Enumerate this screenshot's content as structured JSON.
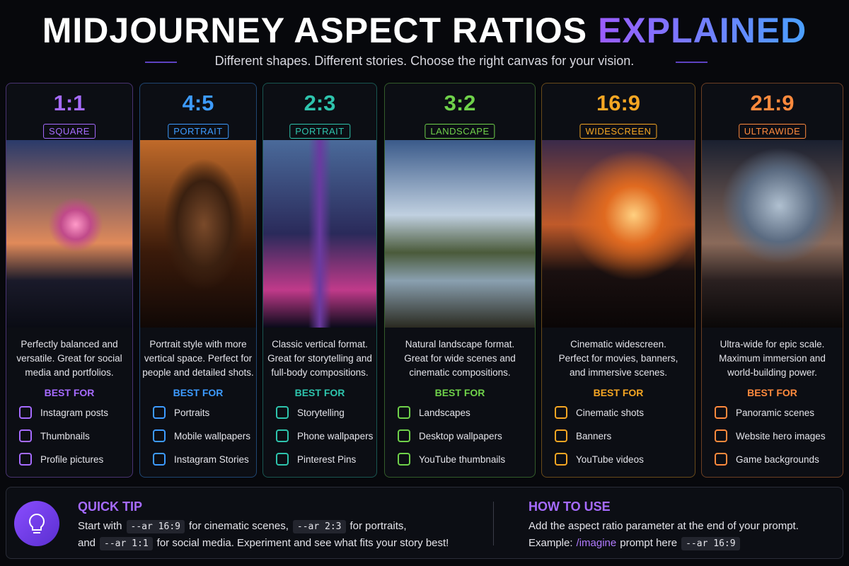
{
  "header": {
    "title_main": "MIDJOURNEY ASPECT RATIOS",
    "title_accent": "EXPLAINED",
    "subtitle": "Different shapes. Different stories. Choose the right canvas for your vision."
  },
  "cards": [
    {
      "ratio": "1:1",
      "label": "SQUARE",
      "color": "#a66bff",
      "description": [
        "Perfectly balanced and",
        "versatile. Great for social",
        "media and portfolios."
      ],
      "best_for": "BEST FOR",
      "items": [
        "Instagram posts",
        "Thumbnails",
        "Profile pictures"
      ]
    },
    {
      "ratio": "4:5",
      "label": "PORTRAIT",
      "color": "#3d9bff",
      "description": [
        "Portrait style with more",
        "vertical space. Perfect for",
        "people and detailed shots."
      ],
      "best_for": "BEST FOR",
      "items": [
        "Portraits",
        "Mobile wallpapers",
        "Instagram Stories"
      ]
    },
    {
      "ratio": "2:3",
      "label": "PORTRAIT",
      "color": "#2ec4ad",
      "description": [
        "Classic vertical format.",
        "Great for storytelling and",
        "full-body compositions."
      ],
      "best_for": "BEST FOR",
      "items": [
        "Storytelling",
        "Phone wallpapers",
        "Pinterest Pins"
      ]
    },
    {
      "ratio": "3:2",
      "label": "LANDSCAPE",
      "color": "#6fd14a",
      "description": [
        "Natural landscape format.",
        "Great for wide scenes and",
        "cinematic compositions."
      ],
      "best_for": "BEST FOR",
      "items": [
        "Landscapes",
        "Desktop wallpapers",
        "YouTube thumbnails"
      ]
    },
    {
      "ratio": "16:9",
      "label": "WIDESCREEN",
      "color": "#f5a623",
      "description": [
        "Cinematic widescreen.",
        "Perfect for movies, banners,",
        "and immersive scenes."
      ],
      "best_for": "BEST FOR",
      "items": [
        "Cinematic shots",
        "Banners",
        "YouTube videos"
      ]
    },
    {
      "ratio": "21:9",
      "label": "ULTRAWIDE",
      "color": "#ff8a3d",
      "description": [
        "Ultra-wide for epic scale.",
        "Maximum immersion and",
        "world-building power."
      ],
      "best_for": "BEST FOR",
      "items": [
        "Panoramic scenes",
        "Website hero images",
        "Game backgrounds"
      ]
    }
  ],
  "footer": {
    "tip": {
      "title": "QUICK TIP",
      "lines": [
        [
          {
            "text": "Start with",
            "code": false
          },
          {
            "text": "--ar 16:9",
            "code": true
          },
          {
            "text": "for cinematic scenes,",
            "code": false
          },
          {
            "text": "--ar 2:3",
            "code": true
          },
          {
            "text": "for portraits,",
            "code": false
          }
        ],
        [
          {
            "text": "and",
            "code": false
          },
          {
            "text": "--ar 1:1",
            "code": true
          },
          {
            "text": "for social media. Experiment and see what fits your story best!",
            "code": false
          }
        ]
      ]
    },
    "how": {
      "title": "HOW TO USE",
      "lines": [
        [
          {
            "text": "Add the aspect ratio parameter at the end of your prompt.",
            "code": false
          }
        ],
        [
          {
            "text": "Example:",
            "code": false
          },
          {
            "text": "/imagine",
            "code": false,
            "accent": true
          },
          {
            "text": "prompt here",
            "code": false
          },
          {
            "text": "--ar 16:9",
            "code": true
          }
        ]
      ]
    }
  }
}
